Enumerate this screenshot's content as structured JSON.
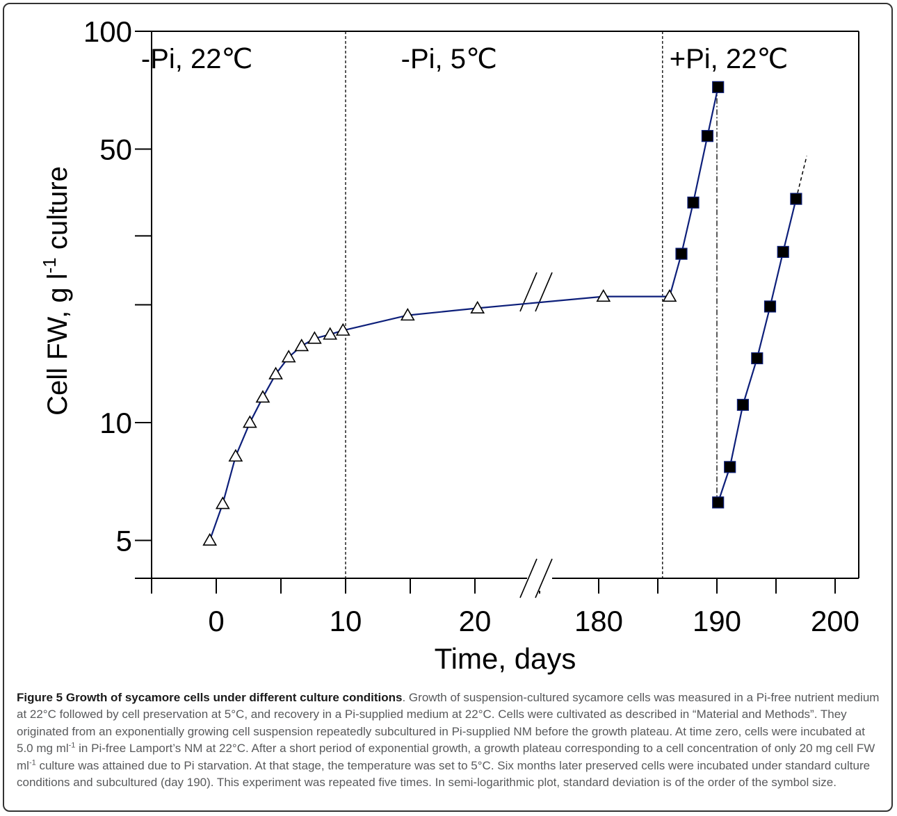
{
  "colors": {
    "line": "#0d1f7a",
    "axis": "#000000",
    "caption_text": "#58595b",
    "caption_title": "#1a1a1a"
  },
  "chart_data": {
    "type": "line",
    "ylabel": "Cell FW, g l-1 culture",
    "xlabel": "Time, days",
    "y_scale": "log",
    "ylim": [
      4.0,
      100
    ],
    "y_ticks_major": [
      {
        "value": 5,
        "label": "5"
      },
      {
        "value": 10,
        "label": "10"
      },
      {
        "value": 50,
        "label": "50"
      },
      {
        "value": 100,
        "label": "100"
      }
    ],
    "y_ticks_minor": [
      4,
      20,
      30
    ],
    "x_segment_1": {
      "range": [
        -5,
        25
      ],
      "ticks": [
        -5,
        0,
        5,
        10,
        15,
        20
      ],
      "tick_labels": [
        {
          "value": 0,
          "label": "0"
        },
        {
          "value": 10,
          "label": "10"
        },
        {
          "value": 20,
          "label": "20"
        }
      ]
    },
    "x_segment_2": {
      "range": [
        175,
        202
      ],
      "ticks": [
        175,
        180,
        185,
        190,
        195,
        200
      ],
      "tick_labels": [
        {
          "value": 180,
          "label": "180"
        },
        {
          "value": 190,
          "label": "190"
        },
        {
          "value": 200,
          "label": "200"
        }
      ]
    },
    "x_break": true,
    "phase_boundaries": [
      10,
      185.4
    ],
    "subculture_day": 190,
    "regions": [
      {
        "label": "-Pi, 22℃",
        "x": -1.5
      },
      {
        "label": "-Pi, 5℃",
        "x": 18
      },
      {
        "label": "+Pi, 22℃",
        "x": 191
      }
    ],
    "series": [
      {
        "marker": "triangle-open",
        "points": [
          [
            -0.5,
            5.0
          ],
          [
            0.5,
            6.2
          ],
          [
            1.5,
            8.2
          ],
          [
            2.6,
            10.0
          ],
          [
            3.6,
            11.6
          ],
          [
            4.6,
            13.3
          ],
          [
            5.6,
            14.7
          ],
          [
            6.6,
            15.7
          ],
          [
            7.6,
            16.4
          ],
          [
            8.8,
            16.8
          ],
          [
            9.8,
            17.2
          ],
          [
            14.8,
            18.8
          ],
          [
            20.2,
            19.6
          ],
          [
            180.4,
            21.0
          ],
          [
            186.0,
            21.0
          ]
        ]
      },
      {
        "marker": "square-filled",
        "points": [
          [
            187.0,
            27.0
          ],
          [
            188.0,
            36.5
          ],
          [
            189.2,
            54.0
          ],
          [
            190.1,
            72.0
          ]
        ]
      },
      {
        "marker": "square-filled",
        "points": [
          [
            190.1,
            6.25
          ],
          [
            191.1,
            7.7
          ],
          [
            192.2,
            11.1
          ],
          [
            193.4,
            14.6
          ],
          [
            194.5,
            19.8
          ],
          [
            195.6,
            27.3
          ],
          [
            196.7,
            37.3
          ]
        ]
      }
    ],
    "extrapolation": [
      [
        196.7,
        37.3
      ],
      [
        197.6,
        48.0
      ]
    ]
  },
  "caption": {
    "title": "Figure 5 Growth of sycamore cells under different culture conditions",
    "p1": ". Growth of suspension-cultured sycamore cells was measured in a Pi-free nutrient medium at 22°C followed by cell preservation at 5°C, and recovery in a Pi-supplied medium at 22°C. Cells were cultivated as described in “Material and Methods”. They originated from an exponentially growing cell suspension repeatedly subcultured in Pi-supplied NM before the growth plateau. At time zero, cells were incubated at 5.0 mg ml",
    "sup1": "-1",
    "p2": " in Pi-free Lamport’s NM at 22°C. After a short period of exponential growth, a growth plateau corresponding to a cell concentration of only 20 mg cell FW ml",
    "sup2": "-1",
    "p3": " culture was attained due to Pi starvation. At that stage, the temperature was set to 5°C. Six months later preserved cells were incubated under standard culture conditions and subcultured (day 190). This experiment was repeated five times. In semi-logarithmic plot, standard deviation is of the order of the symbol size."
  }
}
